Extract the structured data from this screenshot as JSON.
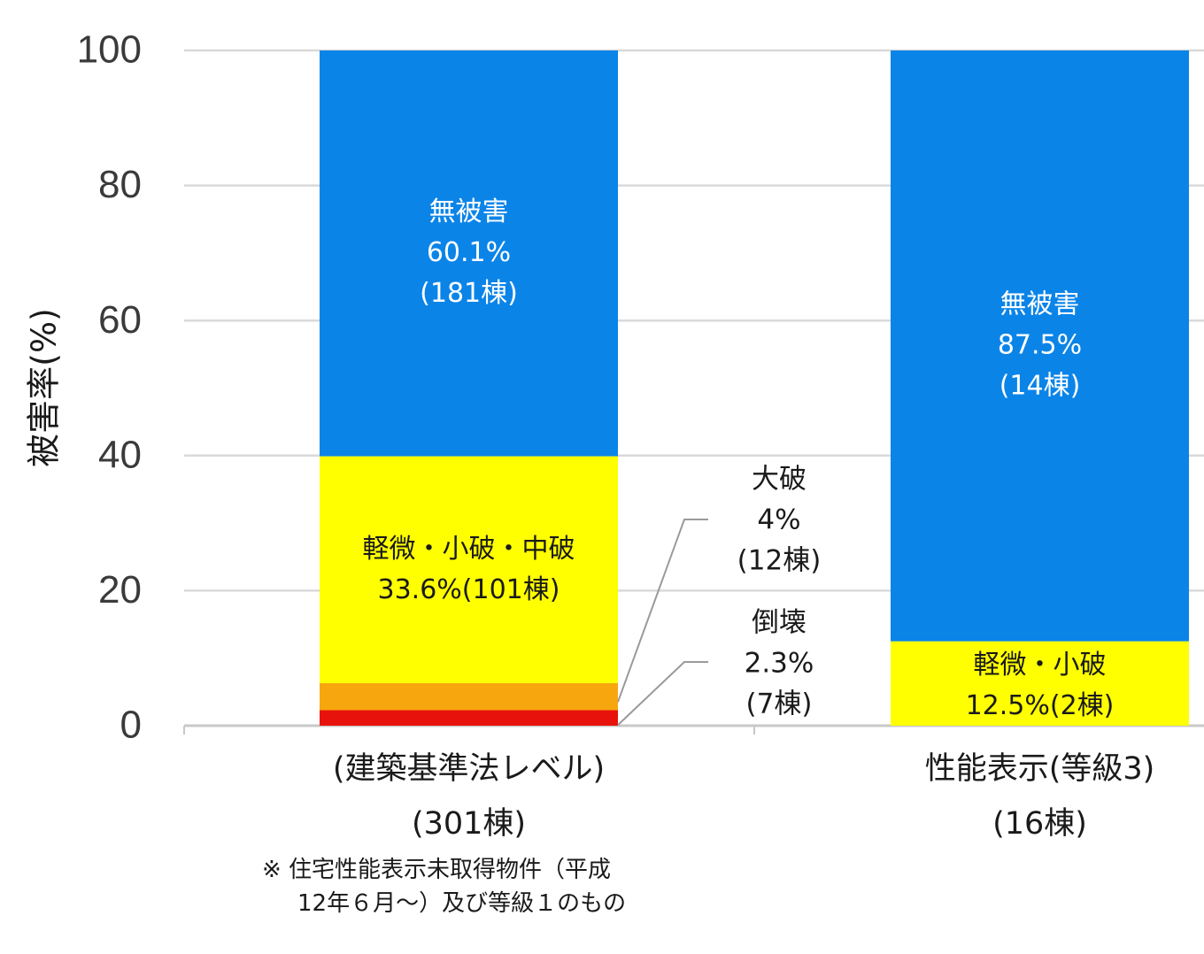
{
  "chart_data": {
    "type": "bar",
    "stacked": true,
    "ylabel": "被害率(%)",
    "ylim": [
      0,
      100
    ],
    "yticks": [
      0,
      20,
      40,
      60,
      80,
      100
    ],
    "grid": true,
    "categories": [
      [
        "(建築基準法レベル)",
        "(301棟)"
      ],
      [
        "性能表示(等級3)",
        "(16棟)"
      ]
    ],
    "series": [
      {
        "name": "倒壊",
        "color": "#e8120c",
        "values": [
          2.3,
          0
        ]
      },
      {
        "name": "大破",
        "color": "#f7a70d",
        "values": [
          4.0,
          0
        ]
      },
      {
        "name": "軽微・小破・中破",
        "color": "#ffff00",
        "values": [
          33.6,
          12.5
        ]
      },
      {
        "name": "無被害",
        "color": "#0b84e8",
        "values": [
          60.1,
          87.5
        ]
      }
    ],
    "segment_labels": [
      {
        "category": 0,
        "series": 3,
        "color": "#ffffff",
        "lines": [
          "無被害",
          "60.1%",
          "(181棟)"
        ]
      },
      {
        "category": 0,
        "series": 2,
        "color": "#1a1a1a",
        "lines": [
          "軽微・小破・中破",
          "33.6%(101棟)"
        ]
      },
      {
        "category": 1,
        "series": 3,
        "color": "#ffffff",
        "lines": [
          "無被害",
          "87.5%",
          "(14棟)"
        ]
      },
      {
        "category": 1,
        "series": 2,
        "color": "#1a1a1a",
        "lines": [
          "軽微・小破",
          "12.5%(2棟)"
        ]
      }
    ],
    "callouts": [
      {
        "category": 0,
        "series": 1,
        "lines": [
          "大破",
          "4%",
          "(12棟)"
        ]
      },
      {
        "category": 0,
        "series": 0,
        "lines": [
          "倒壊",
          "2.3%",
          "(7棟)"
        ]
      }
    ]
  },
  "footnote": {
    "line1": "※  住宅性能表示未取得物件（平成",
    "line2": "12年６月～）及び等級１のもの"
  }
}
